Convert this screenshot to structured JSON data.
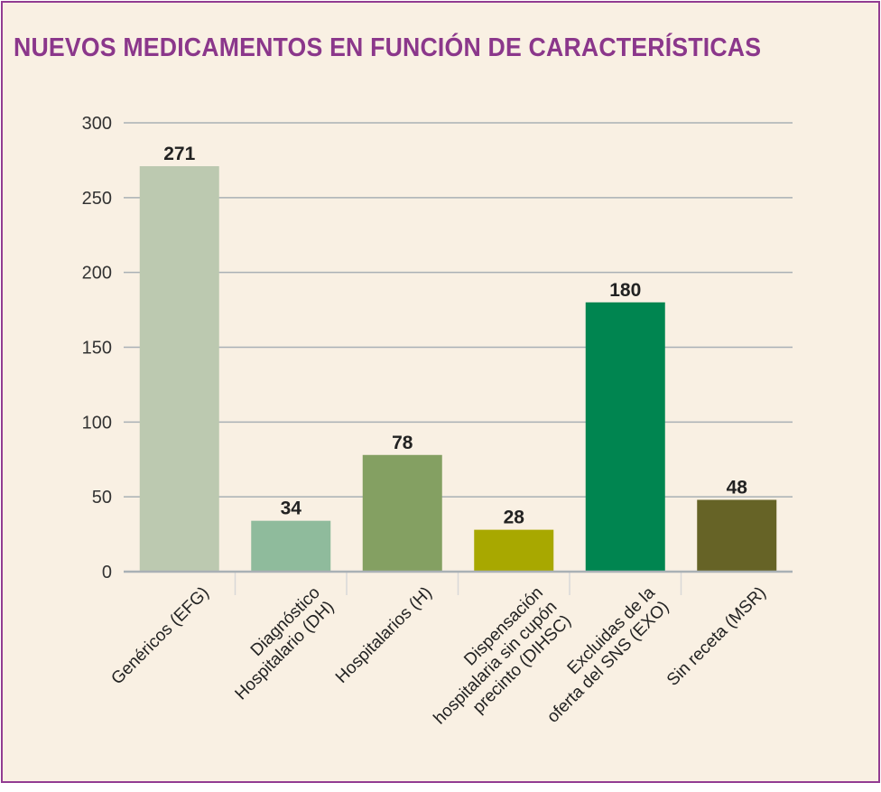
{
  "chart_data": {
    "type": "bar",
    "title": "NUEVOS MEDICAMENTOS EN FUNCIÓN DE CARACTERÍSTICAS",
    "categories": [
      "Genéricos (EFG)",
      "Diagnóstico\nHospitalario (DH)",
      "Hospitalarios (H)",
      "Dispensación\nhospitalaria sin cupón\nprecinto (DIHSC)",
      "Excluidas de la\noferta del SNS (EXO)",
      "Sin receta (MSR)"
    ],
    "values": [
      271,
      34,
      78,
      28,
      180,
      48
    ],
    "data_labels": [
      "271",
      "34",
      "78",
      "28",
      "180",
      "48"
    ],
    "colors": [
      "#bcc9b0",
      "#8fbb9c",
      "#84a062",
      "#a8a800",
      "#008550",
      "#666326"
    ],
    "xlabel": "",
    "ylabel": "",
    "ylim": [
      0,
      300
    ],
    "yticks": [
      "0",
      "50",
      "100",
      "150",
      "200",
      "250",
      "300"
    ],
    "grid": true,
    "legend": "none"
  }
}
